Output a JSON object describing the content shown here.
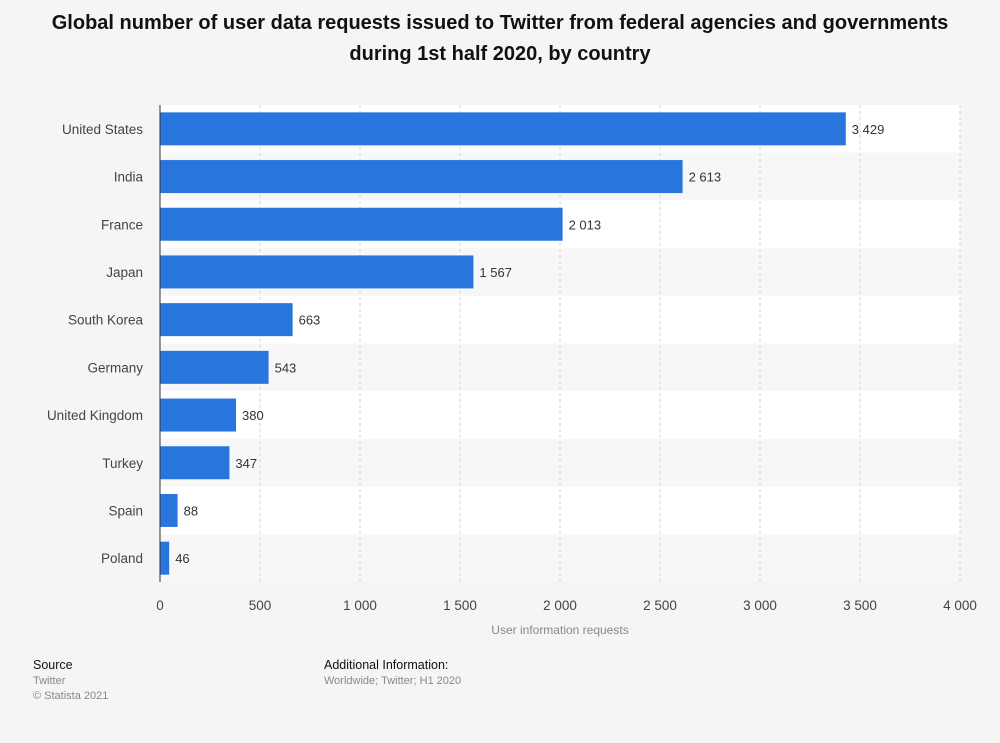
{
  "chart_data": {
    "type": "bar",
    "orientation": "horizontal",
    "title": "Global number of user data requests issued to Twitter from federal agencies and governments during 1st half 2020, by country",
    "categories": [
      "United States",
      "India",
      "France",
      "Japan",
      "South Korea",
      "Germany",
      "United Kingdom",
      "Turkey",
      "Spain",
      "Poland"
    ],
    "values": [
      3429,
      2613,
      2013,
      1567,
      663,
      543,
      380,
      347,
      88,
      46
    ],
    "value_labels": [
      "3 429",
      "2 613",
      "2 013",
      "1 567",
      "663",
      "543",
      "380",
      "347",
      "88",
      "46"
    ],
    "xlabel": "User information requests",
    "ylabel": "",
    "xlim": [
      0,
      4000
    ],
    "xticks": [
      0,
      500,
      1000,
      1500,
      2000,
      2500,
      3000,
      3500,
      4000
    ],
    "xtick_labels": [
      "0",
      "500",
      "1 000",
      "1 500",
      "2 000",
      "2 500",
      "3 000",
      "3 500",
      "4 000"
    ],
    "grid": true,
    "bar_color": "#2876dd"
  },
  "footer": {
    "source_heading": "Source",
    "source_name": "Twitter",
    "copyright": "© Statista 2021",
    "info_heading": "Additional Information:",
    "info_text": "Worldwide; Twitter; H1 2020"
  }
}
